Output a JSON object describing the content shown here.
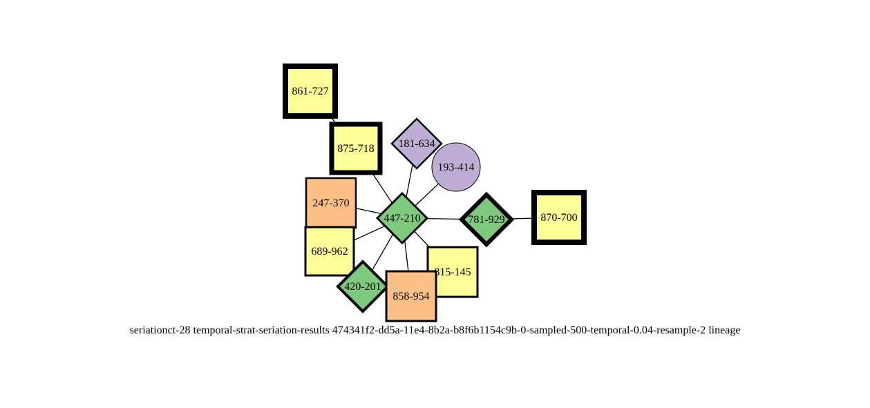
{
  "caption": "seriationct-28  temporal-strat-seriation-results  474341f2-dd5a-11e4-8b2a-b8f6b1154c9b-0-sampled-500-temporal-0.04-resample-2  lineage",
  "colors": {
    "yellow": "#ffff99",
    "orange": "#fdc086",
    "green": "#7fc97f",
    "purple": "#beaed4",
    "stroke": "#000000"
  },
  "nodes": [
    {
      "id": "861-727",
      "label": "861-727",
      "shape": "square",
      "color": "yellow"
    },
    {
      "id": "875-718",
      "label": "875-718",
      "shape": "square",
      "color": "yellow"
    },
    {
      "id": "181-634",
      "label": "181-634",
      "shape": "diamond",
      "color": "purple"
    },
    {
      "id": "193-414",
      "label": "193-414",
      "shape": "circle",
      "color": "purple"
    },
    {
      "id": "247-370",
      "label": "247-370",
      "shape": "square",
      "color": "orange"
    },
    {
      "id": "447-210",
      "label": "447-210",
      "shape": "diamond",
      "color": "green"
    },
    {
      "id": "781-929",
      "label": "781-929",
      "shape": "diamond",
      "color": "green"
    },
    {
      "id": "870-700",
      "label": "870-700",
      "shape": "square",
      "color": "yellow"
    },
    {
      "id": "689-962",
      "label": "689-962",
      "shape": "square",
      "color": "yellow"
    },
    {
      "id": "815-145",
      "label": "815-145",
      "shape": "square",
      "color": "yellow"
    },
    {
      "id": "420-201",
      "label": "420-201",
      "shape": "diamond",
      "color": "green"
    },
    {
      "id": "858-954",
      "label": "858-954",
      "shape": "square",
      "color": "orange"
    }
  ],
  "edges": [
    [
      "861-727",
      "875-718"
    ],
    [
      "875-718",
      "447-210"
    ],
    [
      "181-634",
      "447-210"
    ],
    [
      "193-414",
      "447-210"
    ],
    [
      "247-370",
      "447-210"
    ],
    [
      "689-962",
      "447-210"
    ],
    [
      "420-201",
      "447-210"
    ],
    [
      "858-954",
      "447-210"
    ],
    [
      "815-145",
      "447-210"
    ],
    [
      "447-210",
      "781-929"
    ],
    [
      "781-929",
      "870-700"
    ]
  ]
}
